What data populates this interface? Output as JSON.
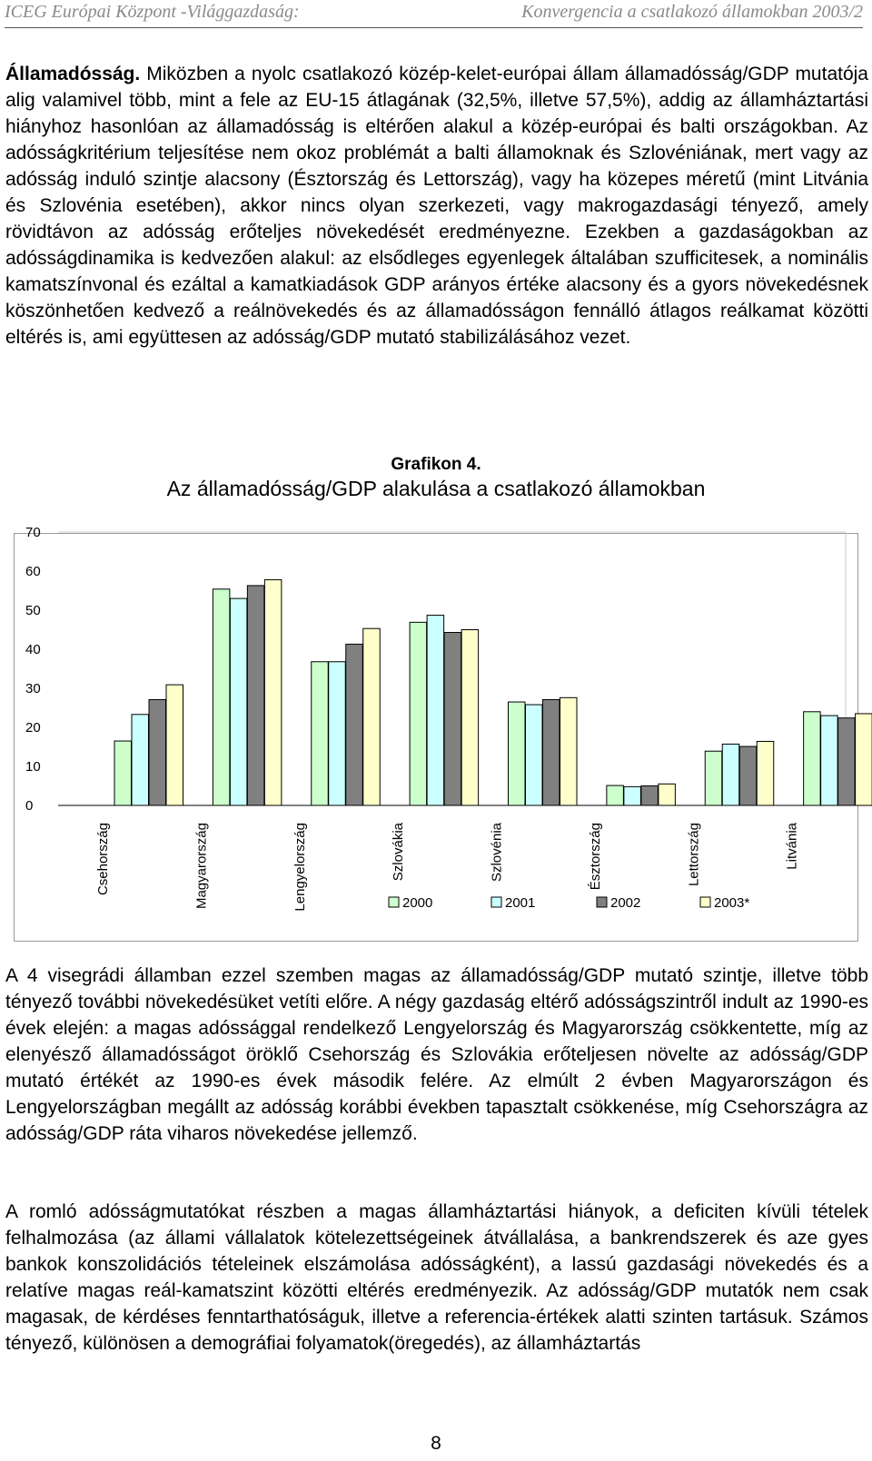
{
  "header": {
    "left": "ICEG Európai Központ -Világgazdaság:",
    "right": "Konvergencia a csatlakozó államokban 2003/2"
  },
  "p1": {
    "lead": "Államadósság.",
    "text": " Miközben a nyolc csatlakozó közép-kelet-európai állam államadósság/GDP mutatója alig valamivel több, mint a fele az EU-15 átlagának (32,5%, illetve 57,5%), addig az államháztartási hiányhoz hasonlóan az államadósság is eltérően alakul a közép-európai és balti országokban. Az adósságkritérium teljesítése nem okoz problémát a balti államoknak és Szlovéniának, mert vagy az adósság induló szintje alacsony (Észtország és Lettország), vagy ha közepes méretű (mint Litvánia és Szlovénia esetében), akkor nincs olyan szerkezeti, vagy makrogazdasági tényező, amely rövidtávon az adósság erőteljes növekedését eredményezne. Ezekben a gazdaságokban az adósságdinamika is kedvezően alakul: az elsődleges egyenlegek általában szufficitesek, a nominális kamatszínvonal és ezáltal a kamatkiadások GDP arányos értéke alacsony és a gyors növekedésnek köszönhetően kedvező a reálnövekedés és az államadósságon fennálló átlagos reálkamat közötti eltérés is, ami együttesen az adósság/GDP mutató stabilizálásához vezet."
  },
  "caption": {
    "number": "Grafikon 4.",
    "title": "Az államadósság/GDP alakulása a csatlakozó államokban"
  },
  "chart_data": {
    "type": "bar",
    "title": "Az államadósság/GDP alakulása a csatlakozó államokban",
    "categories": [
      "Csehország",
      "Magyarország",
      "Lengyelország",
      "Szlovákia",
      "Szlovénia",
      "Észtország",
      "Lettország",
      "Litvánia"
    ],
    "series": [
      {
        "name": "2000",
        "color": "#ccffcc",
        "values": [
          16.5,
          55.4,
          36.8,
          46.9,
          26.5,
          5.1,
          13.9,
          24.0
        ]
      },
      {
        "name": "2001",
        "color": "#ccffff",
        "values": [
          23.3,
          53.0,
          36.8,
          48.7,
          25.8,
          4.8,
          15.7,
          23.0
        ]
      },
      {
        "name": "2002",
        "color": "#808080",
        "values": [
          27.1,
          56.3,
          41.3,
          44.3,
          27.1,
          5.0,
          15.1,
          22.4
        ]
      },
      {
        "name": "2003*",
        "color": "#ffffcc",
        "values": [
          30.9,
          57.8,
          45.3,
          45.0,
          27.6,
          5.5,
          16.4,
          23.5
        ]
      }
    ],
    "yticks": [
      0,
      10,
      20,
      30,
      40,
      50,
      60,
      70
    ],
    "ylim": [
      0,
      70
    ],
    "grid": false,
    "legend": "bottom"
  },
  "p2": {
    "text": "A 4 visegrádi államban ezzel szemben magas az államadósság/GDP mutató szintje, illetve több tényező további növekedésüket vetíti előre. A négy gazdaság eltérő adósságszintről indult az 1990-es évek elején: a magas adóssággal rendelkező Lengyelország és Magyarország csökkentette, míg az elenyésző államadósságot öröklő Csehország és Szlovákia erőteljesen növelte az adósság/GDP mutató értékét az 1990-es évek második felére. Az elmúlt 2 évben Magyarországon és Lengyelországban megállt az adósság korábbi években tapasztalt csökkenése, míg Csehországra az adósság/GDP ráta viharos növekedése jellemző."
  },
  "p3": {
    "text": "A romló adósságmutatókat részben a magas államháztartási hiányok, a deficiten kívüli tételek felhalmozása (az állami vállalatok kötelezettségeinek átvállalása, a bankrendszerek és aze gyes bankok konszolidációs tételeinek elszámolása adósságként), a lassú gazdasági növekedés és a relatíve magas reál-kamatszint közötti eltérés eredményezik. Az adósság/GDP mutatók nem csak magasak, de kérdéses fenntarthatóságuk, illetve a referencia-értékek alatti szinten tartásuk. Számos tényező, különösen a demográfiai folyamatok(öregedés), az államháztartás"
  },
  "page_number": "8"
}
